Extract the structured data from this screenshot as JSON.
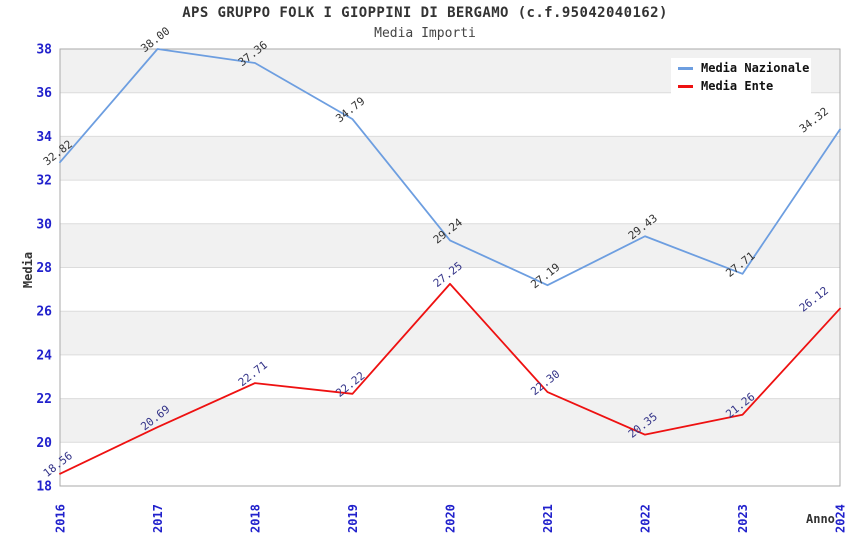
{
  "chart_data": {
    "type": "line",
    "title": "APS GRUPPO FOLK I GIOPPINI DI BERGAMO (c.f.95042040162)",
    "subtitle": "Media Importi",
    "xlabel": "Anno",
    "ylabel": "Media",
    "categories": [
      "2016",
      "2017",
      "2018",
      "2019",
      "2020",
      "2021",
      "2022",
      "2023",
      "2024"
    ],
    "ylim": [
      18,
      38
    ],
    "ytick_step": 2,
    "grid": "horizontal-bands-alternating",
    "legend_position": "top-right",
    "series": [
      {
        "name": "Media Nazionale",
        "color": "#6D9EE0",
        "label_color": "#333333",
        "values": [
          32.82,
          38.0,
          37.36,
          34.79,
          29.24,
          27.19,
          29.43,
          27.71,
          34.32
        ],
        "labels": [
          "32.82",
          "38.00",
          "37.36",
          "34.79",
          "29.24",
          "27.19",
          "29.43",
          "27.71",
          "34.32"
        ]
      },
      {
        "name": "Media Ente",
        "color": "#EE1111",
        "label_color": "#333388",
        "values": [
          18.56,
          20.69,
          22.71,
          22.22,
          27.25,
          22.3,
          20.35,
          21.26,
          26.12
        ],
        "labels": [
          "18.56",
          "20.69",
          "22.71",
          "22.22",
          "27.25",
          "22.30",
          "20.35",
          "21.26",
          "26.12"
        ]
      }
    ],
    "colors": {
      "tick_label": "#2121CC",
      "axis_title": "#333333",
      "title": "#333333",
      "band_gray": "#F1F1F1",
      "band_white": "#FFFFFF",
      "grid_line": "#DCDCDC",
      "plot_border": "#AAAAAA",
      "legend_bg": "#FFFFFF"
    }
  }
}
